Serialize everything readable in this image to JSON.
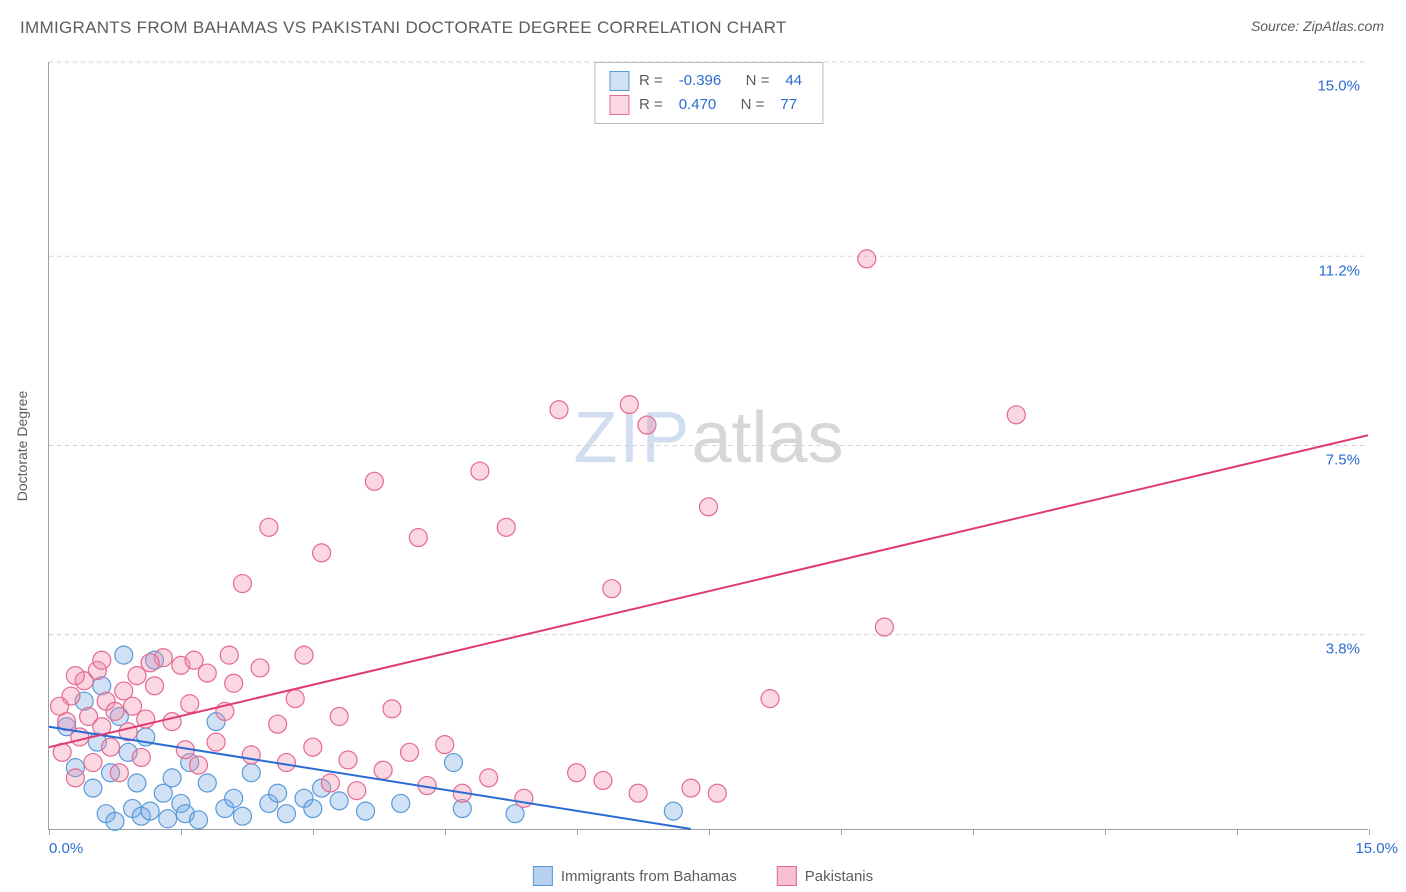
{
  "title": "IMMIGRANTS FROM BAHAMAS VS PAKISTANI DOCTORATE DEGREE CORRELATION CHART",
  "source": "Source: ZipAtlas.com",
  "ylabel": "Doctorate Degree",
  "watermark_part1": "ZIP",
  "watermark_part2": "atlas",
  "chart": {
    "type": "scatter",
    "xlim": [
      0,
      15
    ],
    "ylim": [
      0,
      15
    ],
    "x_ticks_labels": {
      "min": "0.0%",
      "max": "15.0%"
    },
    "y_ticks": [
      {
        "v": 3.8,
        "label": "3.8%"
      },
      {
        "v": 7.5,
        "label": "7.5%"
      },
      {
        "v": 11.2,
        "label": "11.2%"
      },
      {
        "v": 15.0,
        "label": "15.0%"
      }
    ],
    "x_tick_marks": [
      0,
      1.5,
      3.0,
      4.5,
      6.0,
      7.5,
      9.0,
      10.5,
      12.0,
      13.5,
      15.0
    ],
    "grid_color": "#d0d0d0",
    "axis_color": "#9aa0a8",
    "background_color": "#ffffff",
    "marker_radius": 9,
    "marker_stroke_width": 1.2,
    "line_width": 2,
    "series": [
      {
        "name": "Immigrants from Bahamas",
        "fill": "rgba(120,170,230,0.35)",
        "stroke": "#5a9ad8",
        "line_color": "#2b6bd4",
        "R": "-0.396",
        "N": "44",
        "trend": {
          "x1": 0,
          "y1": 2.0,
          "x2": 7.3,
          "y2": 0.0
        },
        "points": [
          [
            0.2,
            2.0
          ],
          [
            0.3,
            1.2
          ],
          [
            0.4,
            2.5
          ],
          [
            0.5,
            0.8
          ],
          [
            0.55,
            1.7
          ],
          [
            0.6,
            2.8
          ],
          [
            0.65,
            0.3
          ],
          [
            0.7,
            1.1
          ],
          [
            0.75,
            0.15
          ],
          [
            0.8,
            2.2
          ],
          [
            0.85,
            3.4
          ],
          [
            0.9,
            1.5
          ],
          [
            0.95,
            0.4
          ],
          [
            1.0,
            0.9
          ],
          [
            1.05,
            0.25
          ],
          [
            1.1,
            1.8
          ],
          [
            1.15,
            0.35
          ],
          [
            1.2,
            3.3
          ],
          [
            1.3,
            0.7
          ],
          [
            1.35,
            0.2
          ],
          [
            1.4,
            1.0
          ],
          [
            1.5,
            0.5
          ],
          [
            1.55,
            0.3
          ],
          [
            1.6,
            1.3
          ],
          [
            1.7,
            0.18
          ],
          [
            1.8,
            0.9
          ],
          [
            1.9,
            2.1
          ],
          [
            2.0,
            0.4
          ],
          [
            2.1,
            0.6
          ],
          [
            2.2,
            0.25
          ],
          [
            2.3,
            1.1
          ],
          [
            2.5,
            0.5
          ],
          [
            2.6,
            0.7
          ],
          [
            2.7,
            0.3
          ],
          [
            2.9,
            0.6
          ],
          [
            3.0,
            0.4
          ],
          [
            3.1,
            0.8
          ],
          [
            3.3,
            0.55
          ],
          [
            3.6,
            0.35
          ],
          [
            4.0,
            0.5
          ],
          [
            4.6,
            1.3
          ],
          [
            4.7,
            0.4
          ],
          [
            5.3,
            0.3
          ],
          [
            7.1,
            0.35
          ]
        ]
      },
      {
        "name": "Pakistanis",
        "fill": "rgba(240,140,170,0.35)",
        "stroke": "#e46a93",
        "line_color": "#e03a72",
        "R": "0.470",
        "N": "77",
        "trend": {
          "x1": 0,
          "y1": 1.6,
          "x2": 15.0,
          "y2": 7.7
        },
        "points": [
          [
            0.15,
            1.5
          ],
          [
            0.2,
            2.1
          ],
          [
            0.25,
            2.6
          ],
          [
            0.3,
            1.0
          ],
          [
            0.35,
            1.8
          ],
          [
            0.4,
            2.9
          ],
          [
            0.45,
            2.2
          ],
          [
            0.5,
            1.3
          ],
          [
            0.55,
            3.1
          ],
          [
            0.6,
            2.0
          ],
          [
            0.65,
            2.5
          ],
          [
            0.7,
            1.6
          ],
          [
            0.75,
            2.3
          ],
          [
            0.8,
            1.1
          ],
          [
            0.85,
            2.7
          ],
          [
            0.9,
            1.9
          ],
          [
            0.95,
            2.4
          ],
          [
            1.0,
            3.0
          ],
          [
            1.05,
            1.4
          ],
          [
            1.1,
            2.15
          ],
          [
            1.2,
            2.8
          ],
          [
            1.3,
            3.35
          ],
          [
            1.4,
            2.1
          ],
          [
            1.5,
            3.2
          ],
          [
            1.55,
            1.55
          ],
          [
            1.6,
            2.45
          ],
          [
            1.7,
            1.25
          ],
          [
            1.8,
            3.05
          ],
          [
            1.9,
            1.7
          ],
          [
            2.0,
            2.3
          ],
          [
            2.1,
            2.85
          ],
          [
            2.2,
            4.8
          ],
          [
            2.3,
            1.45
          ],
          [
            2.4,
            3.15
          ],
          [
            2.5,
            5.9
          ],
          [
            2.6,
            2.05
          ],
          [
            2.7,
            1.3
          ],
          [
            2.8,
            2.55
          ],
          [
            2.9,
            3.4
          ],
          [
            3.0,
            1.6
          ],
          [
            3.1,
            5.4
          ],
          [
            3.2,
            0.9
          ],
          [
            3.3,
            2.2
          ],
          [
            3.4,
            1.35
          ],
          [
            3.5,
            0.75
          ],
          [
            3.7,
            6.8
          ],
          [
            3.8,
            1.15
          ],
          [
            3.9,
            2.35
          ],
          [
            4.1,
            1.5
          ],
          [
            4.2,
            5.7
          ],
          [
            4.3,
            0.85
          ],
          [
            4.5,
            1.65
          ],
          [
            4.7,
            0.7
          ],
          [
            4.9,
            7.0
          ],
          [
            5.0,
            1.0
          ],
          [
            5.2,
            5.9
          ],
          [
            5.4,
            0.6
          ],
          [
            5.8,
            8.2
          ],
          [
            6.0,
            1.1
          ],
          [
            6.3,
            0.95
          ],
          [
            6.4,
            4.7
          ],
          [
            6.6,
            8.3
          ],
          [
            6.7,
            0.7
          ],
          [
            6.8,
            7.9
          ],
          [
            7.3,
            0.8
          ],
          [
            7.5,
            6.3
          ],
          [
            7.6,
            0.7
          ],
          [
            8.2,
            2.55
          ],
          [
            9.3,
            11.15
          ],
          [
            9.5,
            3.95
          ],
          [
            11.0,
            8.1
          ],
          [
            0.3,
            3.0
          ],
          [
            0.6,
            3.3
          ],
          [
            1.15,
            3.25
          ],
          [
            1.65,
            3.3
          ],
          [
            2.05,
            3.4
          ],
          [
            0.12,
            2.4
          ]
        ]
      }
    ]
  },
  "bottom_legend": [
    {
      "label": "Immigrants from Bahamas",
      "fill": "rgba(120,170,230,0.55)",
      "stroke": "#5a9ad8"
    },
    {
      "label": "Pakistanis",
      "fill": "rgba(240,140,170,0.55)",
      "stroke": "#e46a93"
    }
  ]
}
